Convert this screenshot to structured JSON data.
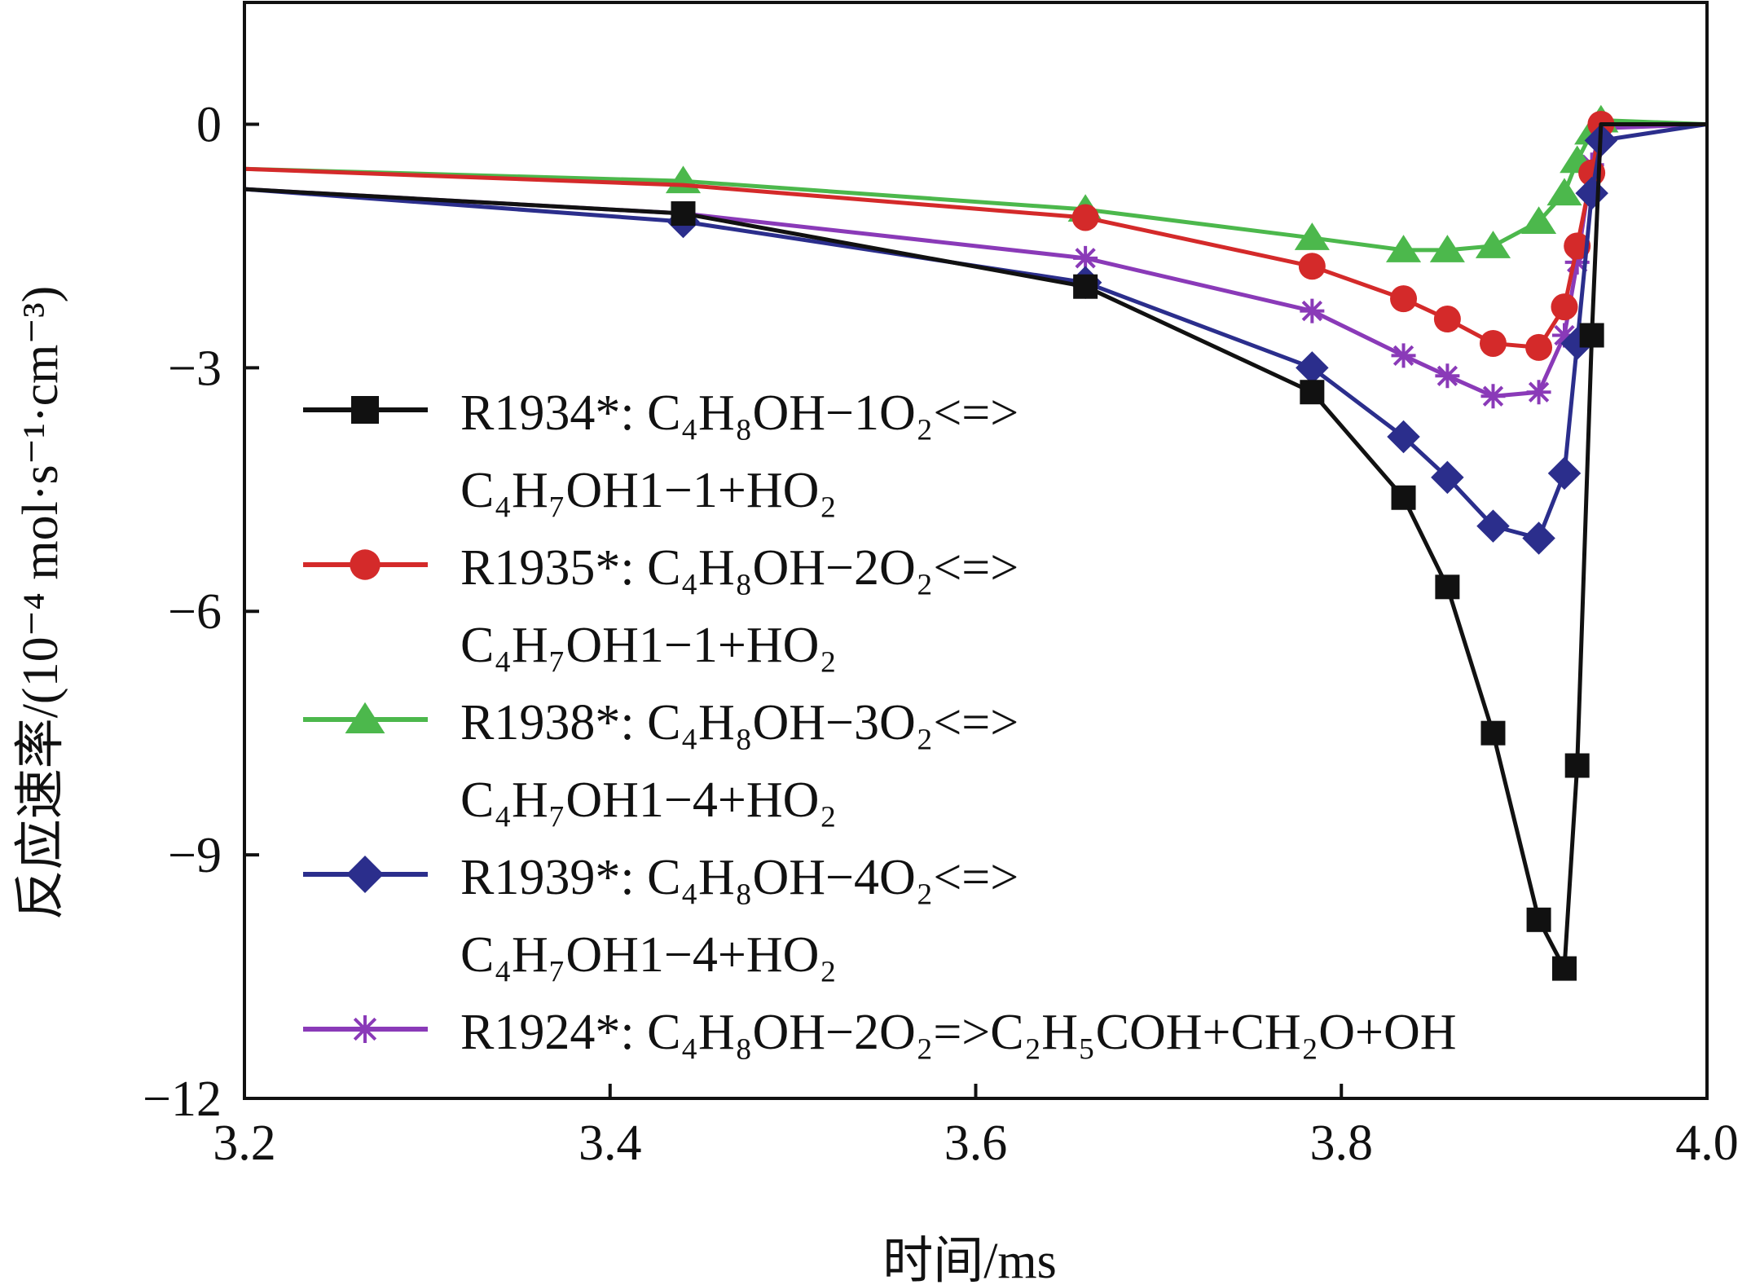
{
  "chart_data": {
    "type": "line",
    "xlabel": "时间/ms",
    "ylabel": "反应速率/(10⁻⁴ mol·s⁻¹·cm⁻³)",
    "xlim": [
      3.2,
      4.0
    ],
    "ylim": [
      -12,
      1.5
    ],
    "xticks": [
      3.2,
      3.4,
      3.6,
      3.8,
      4.0
    ],
    "xtick_labels": [
      "3.2",
      "3.4",
      "3.6",
      "3.8",
      "4.0"
    ],
    "yticks": [
      0,
      -3,
      -6,
      -9,
      -12
    ],
    "ytick_labels": [
      "0",
      "−3",
      "−6",
      "−9",
      "−12"
    ],
    "grid": false,
    "legend_position": "center-left",
    "series": [
      {
        "name": "R1934*: C4H8OH-1O2<=>C4H7OH1-1+HO2",
        "legend_lines": [
          "R1934*: C₄H₈OH−1O₂<=>",
          "C₄H₇OH1−1+HO₂"
        ],
        "color": "#111111",
        "marker": "square",
        "x": [
          3.2,
          3.44,
          3.66,
          3.784,
          3.834,
          3.858,
          3.883,
          3.908,
          3.922,
          3.929,
          3.937,
          3.942,
          4.0
        ],
        "y": [
          -0.8,
          -1.1,
          -2.0,
          -3.3,
          -4.6,
          -5.7,
          -7.5,
          -9.8,
          -10.4,
          -7.9,
          -2.6,
          0.0,
          0.0
        ],
        "markers_x": [
          3.44,
          3.66,
          3.784,
          3.834,
          3.858,
          3.883,
          3.908,
          3.922,
          3.929,
          3.937
        ],
        "markers_y": [
          -1.1,
          -2.0,
          -3.3,
          -4.6,
          -5.7,
          -7.5,
          -9.8,
          -10.4,
          -7.9,
          -2.6
        ]
      },
      {
        "name": "R1935*: C4H8OH-2O2<=>C4H7OH1-1+HO2",
        "legend_lines": [
          "R1935*: C₄H₈OH−2O₂<=>",
          "C₄H₇OH1−1+HO₂"
        ],
        "color": "#d42a2a",
        "marker": "circle",
        "x": [
          3.2,
          3.44,
          3.66,
          3.784,
          3.834,
          3.858,
          3.883,
          3.908,
          3.922,
          3.929,
          3.937,
          3.942,
          4.0
        ],
        "y": [
          -0.55,
          -0.75,
          -1.15,
          -1.75,
          -2.15,
          -2.4,
          -2.7,
          -2.75,
          -2.25,
          -1.5,
          -0.6,
          0.0,
          0.0
        ],
        "markers_x": [
          3.66,
          3.784,
          3.834,
          3.858,
          3.883,
          3.908,
          3.922,
          3.929,
          3.937,
          3.942
        ],
        "markers_y": [
          -1.15,
          -1.75,
          -2.15,
          -2.4,
          -2.7,
          -2.75,
          -2.25,
          -1.5,
          -0.6,
          0.0
        ]
      },
      {
        "name": "R1938*: C4H8OH-3O2<=>C4H7OH1-4+HO2",
        "legend_lines": [
          "R1938*: C₄H₈OH−3O₂<=>",
          "C₄H₇OH1−4+HO₂"
        ],
        "color": "#4cb84c",
        "marker": "triangle",
        "x": [
          3.2,
          3.44,
          3.66,
          3.784,
          3.834,
          3.858,
          3.883,
          3.908,
          3.922,
          3.929,
          3.937,
          3.942,
          4.0
        ],
        "y": [
          -0.55,
          -0.7,
          -1.05,
          -1.4,
          -1.55,
          -1.55,
          -1.5,
          -1.2,
          -0.85,
          -0.45,
          -0.1,
          0.05,
          0.0
        ],
        "markers_x": [
          3.44,
          3.66,
          3.784,
          3.834,
          3.858,
          3.883,
          3.908,
          3.922,
          3.929,
          3.937,
          3.942
        ],
        "markers_y": [
          -0.7,
          -1.05,
          -1.4,
          -1.55,
          -1.55,
          -1.5,
          -1.2,
          -0.85,
          -0.45,
          -0.1,
          0.05
        ]
      },
      {
        "name": "R1939*: C4H8OH-4O2<=>C4H7OH1-4+HO2",
        "legend_lines": [
          "R1939*: C₄H₈OH−4O₂<=>",
          "C₄H₇OH1−4+HO₂"
        ],
        "color": "#2b2e8c",
        "marker": "diamond",
        "x": [
          3.2,
          3.44,
          3.66,
          3.784,
          3.834,
          3.858,
          3.883,
          3.908,
          3.922,
          3.929,
          3.937,
          3.942,
          4.0
        ],
        "y": [
          -0.8,
          -1.2,
          -1.95,
          -3.0,
          -3.85,
          -4.35,
          -4.95,
          -5.1,
          -4.3,
          -2.7,
          -0.85,
          -0.2,
          0.0
        ],
        "markers_x": [
          3.44,
          3.66,
          3.784,
          3.834,
          3.858,
          3.883,
          3.908,
          3.922,
          3.929,
          3.937,
          3.942
        ],
        "markers_y": [
          -1.2,
          -1.95,
          -3.0,
          -3.85,
          -4.35,
          -4.95,
          -5.1,
          -4.3,
          -2.7,
          -0.85,
          -0.2
        ]
      },
      {
        "name": "R1924*: C4H8OH-2O2=>C2H5COH+CH2O+OH",
        "legend_lines": [
          "R1924*: C₄H₈OH−2O₂=>C₂H₅COH+CH₂O+OH"
        ],
        "color": "#8a3ab8",
        "marker": "asterisk",
        "x": [
          3.2,
          3.44,
          3.66,
          3.784,
          3.834,
          3.858,
          3.883,
          3.908,
          3.922,
          3.929,
          3.937,
          3.942,
          4.0
        ],
        "y": [
          -0.8,
          -1.1,
          -1.65,
          -2.3,
          -2.85,
          -3.1,
          -3.35,
          -3.3,
          -2.6,
          -1.7,
          -0.5,
          -0.05,
          0.0
        ],
        "markers_x": [
          3.66,
          3.784,
          3.834,
          3.858,
          3.883,
          3.908,
          3.922,
          3.929,
          3.937
        ],
        "markers_y": [
          -1.65,
          -2.3,
          -2.85,
          -3.1,
          -3.35,
          -3.3,
          -2.6,
          -1.7,
          -0.5
        ]
      }
    ]
  }
}
